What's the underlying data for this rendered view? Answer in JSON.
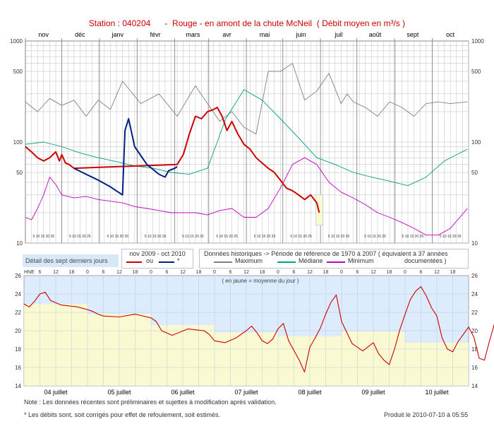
{
  "title": "Station : 040204      -  Rouge - en amont de la chute McNeil  ( Débit moyen en m³/s )",
  "colors": {
    "observed": "#cc0000",
    "corrected": "#002080",
    "maximum": "#808080",
    "median": "#00a080",
    "minimum": "#c000c0",
    "grid": "#c8c8c8",
    "detail_bg_top": "#dcecfc",
    "detail_bg_bottom": "#fafad2",
    "recent_highlight": "#fafad2"
  },
  "chart_data": [
    {
      "type": "line",
      "yscale": "log",
      "ylim": [
        10,
        1000
      ],
      "yticks": [
        "1000",
        "500",
        "100",
        "50",
        "10"
      ],
      "months": [
        "nov",
        "déc",
        "janv",
        "févr",
        "mars",
        "avr",
        "mai",
        "juin",
        "juil",
        "août",
        "sept",
        "oct"
      ],
      "day_tick_text": "5 10 15 20 25",
      "series": [
        {
          "name": "Maximum",
          "x": [
            0,
            10,
            20,
            30,
            40,
            50,
            60,
            70,
            80,
            95,
            110,
            125,
            140,
            150,
            160,
            170,
            180,
            190,
            200,
            210,
            220,
            230,
            240,
            250,
            260,
            265,
            270,
            280,
            290,
            300,
            310,
            320,
            330,
            340,
            350,
            364
          ],
          "values": [
            250,
            200,
            270,
            230,
            260,
            180,
            260,
            210,
            400,
            240,
            300,
            180,
            360,
            240,
            160,
            200,
            140,
            120,
            500,
            500,
            600,
            260,
            320,
            480,
            240,
            300,
            250,
            220,
            180,
            250,
            220,
            180,
            240,
            250,
            240,
            250
          ]
        },
        {
          "name": "Médiane",
          "x": [
            0,
            15,
            30,
            45,
            60,
            75,
            90,
            105,
            120,
            135,
            150,
            165,
            180,
            195,
            210,
            225,
            240,
            255,
            270,
            285,
            300,
            315,
            330,
            345,
            364
          ],
          "values": [
            95,
            100,
            90,
            78,
            70,
            64,
            58,
            55,
            50,
            48,
            55,
            170,
            330,
            260,
            170,
            110,
            70,
            60,
            50,
            45,
            41,
            37,
            45,
            65,
            85
          ]
        },
        {
          "name": "Minimum",
          "x": [
            0,
            5,
            10,
            15,
            20,
            25,
            30,
            40,
            50,
            60,
            70,
            80,
            90,
            100,
            110,
            120,
            130,
            140,
            150,
            160,
            170,
            180,
            190,
            200,
            210,
            220,
            230,
            240,
            250,
            260,
            270,
            280,
            290,
            300,
            310,
            320,
            330,
            340,
            350,
            364
          ],
          "values": [
            18,
            17,
            22,
            30,
            45,
            38,
            30,
            28,
            29,
            27,
            26,
            25,
            23,
            22,
            21,
            20,
            20,
            20,
            19,
            21,
            22,
            18,
            18,
            22,
            35,
            60,
            70,
            60,
            40,
            32,
            28,
            24,
            20,
            18,
            16,
            14,
            12,
            12,
            14,
            22
          ]
        },
        {
          "name": "ou",
          "x": [
            0,
            5,
            10,
            15,
            20,
            25,
            28,
            30,
            33,
            36,
            40,
            125,
            130,
            135,
            140,
            145,
            150,
            155,
            158,
            162,
            166,
            170,
            175,
            180,
            185,
            190,
            195,
            200,
            205,
            210,
            215,
            220,
            225,
            230,
            235,
            240,
            242
          ],
          "values": [
            90,
            80,
            70,
            65,
            70,
            80,
            65,
            75,
            62,
            60,
            55,
            60,
            75,
            120,
            180,
            170,
            200,
            210,
            220,
            180,
            130,
            160,
            120,
            95,
            85,
            70,
            62,
            55,
            50,
            42,
            35,
            33,
            30,
            27,
            30,
            25,
            20
          ]
        },
        {
          "name": "*",
          "x": [
            40,
            50,
            60,
            70,
            80,
            82,
            85,
            90,
            100,
            110,
            115,
            118,
            123,
            125
          ],
          "values": [
            55,
            48,
            42,
            36,
            30,
            130,
            170,
            90,
            60,
            48,
            45,
            52,
            55,
            57
          ]
        }
      ]
    },
    {
      "type": "line",
      "ylim": [
        14,
        26
      ],
      "yticks": [
        "26",
        "24",
        "22",
        "20",
        "18",
        "16",
        "14"
      ],
      "hour_ticks": [
        "HNE",
        "6",
        "12",
        "18",
        "0",
        "6",
        "12",
        "18",
        "0",
        "6",
        "12",
        "18",
        "0",
        "6",
        "12",
        "18",
        "0",
        "6",
        "12",
        "18",
        "0",
        "6",
        "12",
        "18",
        "0",
        "6",
        "12",
        "18"
      ],
      "days": [
        "04 juillet",
        "05 juillet",
        "06 juillet",
        "07 juillet",
        "08 juillet",
        "09 juillet",
        "10 juillet"
      ],
      "x": [
        0,
        2,
        4,
        6,
        8,
        10,
        14,
        20,
        24,
        26,
        28,
        30,
        36,
        42,
        48,
        50,
        52,
        56,
        62,
        68,
        70,
        72,
        76,
        80,
        84,
        86,
        88,
        90,
        92,
        94,
        96,
        98,
        100,
        104,
        106,
        108,
        110,
        112,
        114,
        116,
        118,
        120,
        124,
        128,
        132,
        134,
        136,
        138,
        140,
        142,
        144,
        146,
        148,
        150,
        152,
        154,
        156,
        158,
        160,
        162,
        164,
        166,
        168,
        170,
        172,
        174,
        176,
        178,
        180,
        182
      ],
      "values": [
        22.9,
        22.6,
        23.2,
        24.0,
        24.2,
        23.3,
        22.8,
        22.6,
        22.3,
        22.1,
        21.8,
        21.6,
        21.5,
        21.8,
        21.4,
        21.0,
        20.0,
        19.5,
        20.2,
        20.0,
        19.6,
        18.9,
        18.7,
        19.2,
        20.0,
        20.5,
        19.8,
        18.9,
        18.6,
        19.1,
        20.2,
        20.8,
        18.9,
        16.8,
        15.5,
        18.2,
        19.2,
        20.3,
        21.8,
        23.1,
        23.9,
        21.0,
        18.6,
        17.8,
        18.7,
        17.5,
        16.8,
        16.3,
        18.0,
        20.1,
        21.8,
        23.4,
        24.3,
        24.8,
        23.8,
        22.5,
        21.6,
        19.2,
        18.0,
        17.7,
        18.8,
        19.6,
        20.4,
        19.3,
        17.0,
        16.8,
        19.0,
        21.0,
        22.0,
        22.5
      ],
      "legend_text": "( en jaune = moyenne du jour )"
    }
  ],
  "legend": {
    "detail_title": "Détail des sept derniers jours",
    "period": "nov 2009 - oct 2010",
    "observed_label": "ou",
    "corrected_label": "*",
    "historical": "Données historiques -> Période de référence  de 1970 à 2007  ( équivalent à 37 années",
    "max_label": "Maximum",
    "median_label": "Médiane",
    "min_label": "Minimum",
    "documented": "documentées )"
  },
  "footer": {
    "note": "Note : Les données récentes sont préliminaires et sujettes à modification après validation.",
    "asterisk": "* Les débits sont, soit corrigés pour effet de refoulement, soit estimés.",
    "produced": "Produit le 2010-07-10 à 05:55"
  }
}
